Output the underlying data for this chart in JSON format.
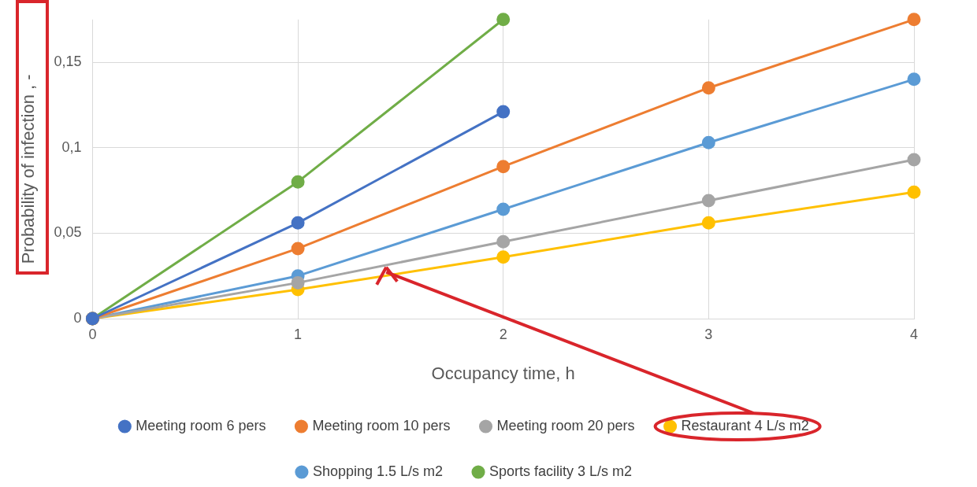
{
  "chart_data": {
    "type": "line",
    "xlabel": "Occupancy time, h",
    "ylabel": "Probability of infection , -",
    "x": [
      0,
      1,
      2,
      3,
      4
    ],
    "series": [
      {
        "name": "Meeting room 6 pers",
        "color": "#4472c4",
        "values": [
          0,
          0.056,
          0.121,
          null,
          null
        ]
      },
      {
        "name": "Meeting room 10 pers",
        "color": "#ed7d31",
        "values": [
          0,
          0.041,
          0.089,
          0.135,
          0.175
        ]
      },
      {
        "name": "Meeting room 20 pers",
        "color": "#a5a5a5",
        "values": [
          0,
          0.021,
          0.045,
          0.069,
          0.093
        ]
      },
      {
        "name": "Restaurant 4 L/s m2",
        "color": "#ffc000",
        "values": [
          0,
          0.017,
          0.036,
          0.056,
          0.074
        ]
      },
      {
        "name": "Shopping 1.5 L/s m2",
        "color": "#5b9bd5",
        "values": [
          0,
          0.025,
          0.064,
          0.103,
          0.14
        ]
      },
      {
        "name": "Sports facility 3 L/s m2",
        "color": "#70ad47",
        "values": [
          0,
          0.08,
          0.175,
          null,
          null
        ]
      }
    ],
    "xlim": [
      0,
      4
    ],
    "xticks": [
      0,
      1,
      2,
      3,
      4
    ],
    "ylim": [
      0,
      0.175
    ],
    "yticks": [
      0,
      {
        "value": 0.05,
        "label": "0,05"
      },
      {
        "value": 0.1,
        "label": "0,1"
      },
      {
        "value": 0.15,
        "label": "0,15"
      }
    ],
    "grid": true,
    "legend": "bottom",
    "marker": "circle",
    "line_style": "solid"
  }
}
